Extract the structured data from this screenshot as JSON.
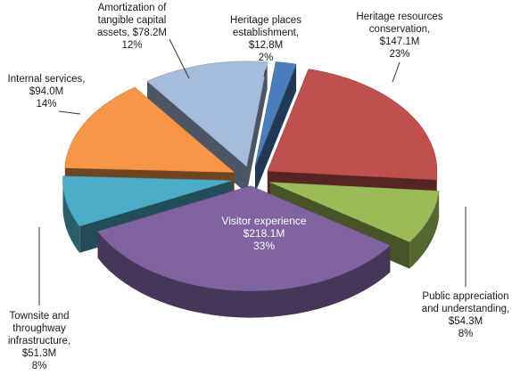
{
  "chart_data": {
    "type": "pie",
    "title": "",
    "style": "3d-exploded",
    "slices": [
      {
        "label": "Heritage places establishment,",
        "value": "$12.8M",
        "percent": "2%",
        "amount": 12.8,
        "color": "#4a7ebb"
      },
      {
        "label": "Heritage resources conservation,",
        "value": "$147.1M",
        "percent": "23%",
        "amount": 147.1,
        "color": "#c0504d"
      },
      {
        "label": "Public appreciation and understanding,",
        "value": "$54.3M",
        "percent": "8%",
        "amount": 54.3,
        "color": "#9bbb59"
      },
      {
        "label": "Visitor experience",
        "value": "$218.1M",
        "percent": "33%",
        "amount": 218.1,
        "color": "#8064a2"
      },
      {
        "label": "Townsite and throughway infrastructure,",
        "value": "$51.3M",
        "percent": "8%",
        "amount": 51.3,
        "color": "#4bacc6"
      },
      {
        "label": "Internal services,",
        "value": "$94.0M",
        "percent": "14%",
        "amount": 94.0,
        "color": "#f79646"
      },
      {
        "label": "Amortization of tangible capital assets,",
        "value": "$78.2M",
        "percent": "12%",
        "amount": 78.2,
        "color": "#a6bcdc"
      }
    ]
  }
}
